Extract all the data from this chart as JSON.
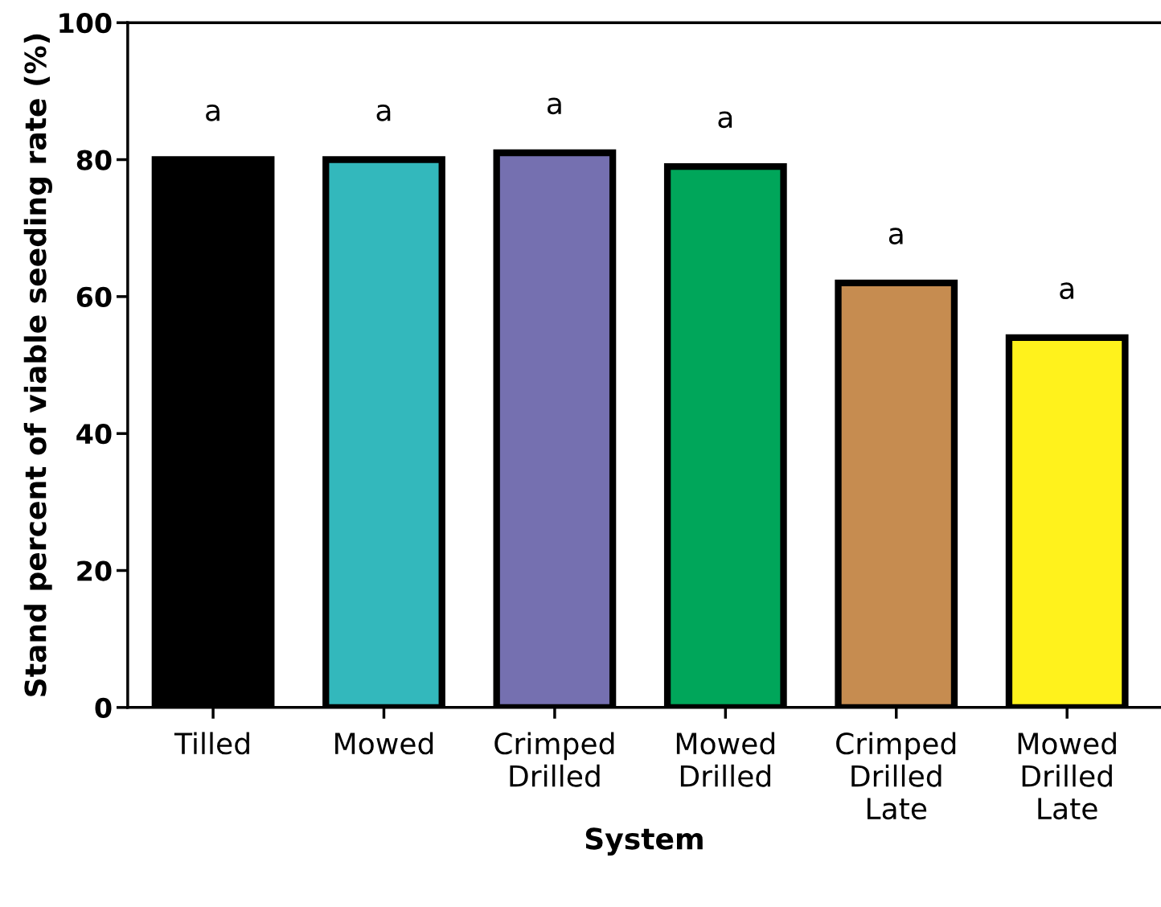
{
  "chart_data": {
    "type": "bar",
    "categories": [
      "Tilled",
      "Mowed",
      "Crimped\nDrilled",
      "Mowed\nDrilled",
      "Crimped\nDrilled\nLate",
      "Mowed\nDrilled\nLate"
    ],
    "values": [
      80,
      80,
      81,
      79,
      62,
      54
    ],
    "colors": [
      "#000000",
      "#33b8bc",
      "#7570b0",
      "#00a65a",
      "#c68c50",
      "#fff21c"
    ],
    "xlabel": "System",
    "ylabel": "Stand percent of viable seeding rate (%)",
    "ylim": [
      0,
      100
    ],
    "yticks": [
      0,
      20,
      40,
      60,
      80,
      100
    ],
    "grid": false,
    "legend": false,
    "annotations": [
      "a",
      "a",
      "a",
      "a",
      "a",
      "a"
    ]
  }
}
